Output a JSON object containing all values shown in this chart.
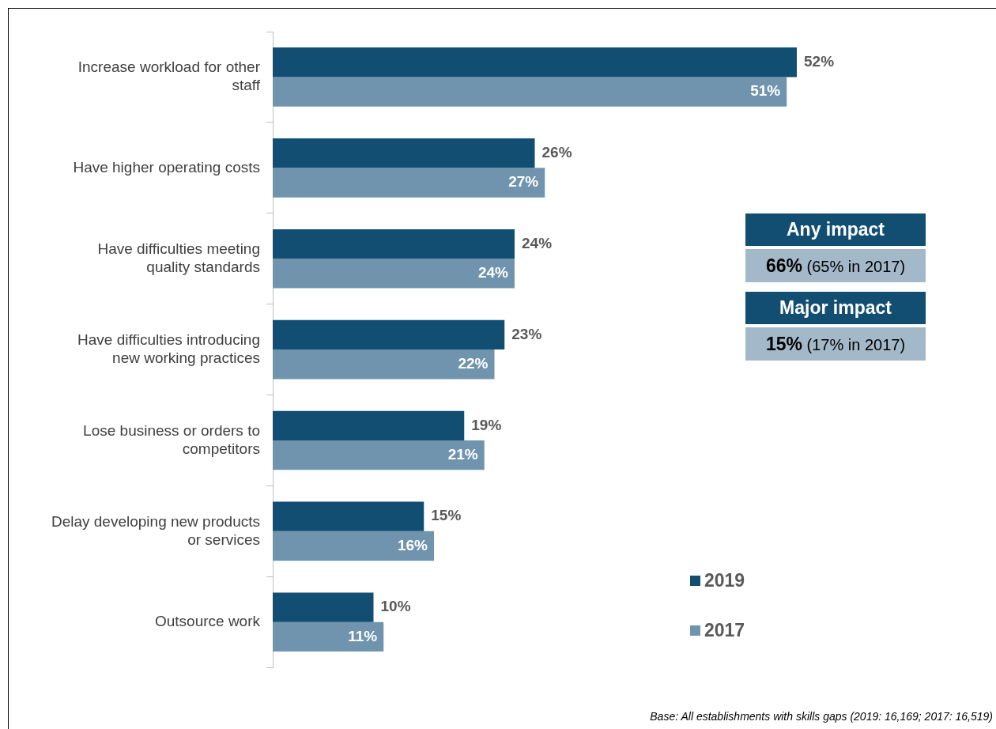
{
  "chart_data": {
    "type": "bar",
    "orientation": "horizontal",
    "legend": "bottom right",
    "categories": [
      "Increase workload for other staff",
      "Have higher operating costs",
      "Have difficulties meeting quality standards",
      "Have difficulties introducing new working practices",
      "Lose business or orders to competitors",
      "Delay developing new products or services",
      "Outsource work"
    ],
    "series": [
      {
        "name": "2019",
        "color": "#124e72",
        "values": [
          52,
          26,
          24,
          23,
          19,
          15,
          10
        ],
        "value_labels": [
          "52%",
          "26%",
          "24%",
          "23%",
          "19%",
          "15%",
          "10%"
        ]
      },
      {
        "name": "2017",
        "color": "#7094ad",
        "values": [
          51,
          27,
          24,
          22,
          21,
          16,
          11
        ],
        "value_labels": [
          "51%",
          "27%",
          "24%",
          "22%",
          "21%",
          "16%",
          "11%"
        ]
      }
    ],
    "annotations": [
      "Any impact",
      "66% (65% in 2017)",
      "Major impact",
      "15% (17% in 2017)",
      "Base: All establishments with skills gaps (2019: 16,169; 2017: 16,519)"
    ]
  }
}
